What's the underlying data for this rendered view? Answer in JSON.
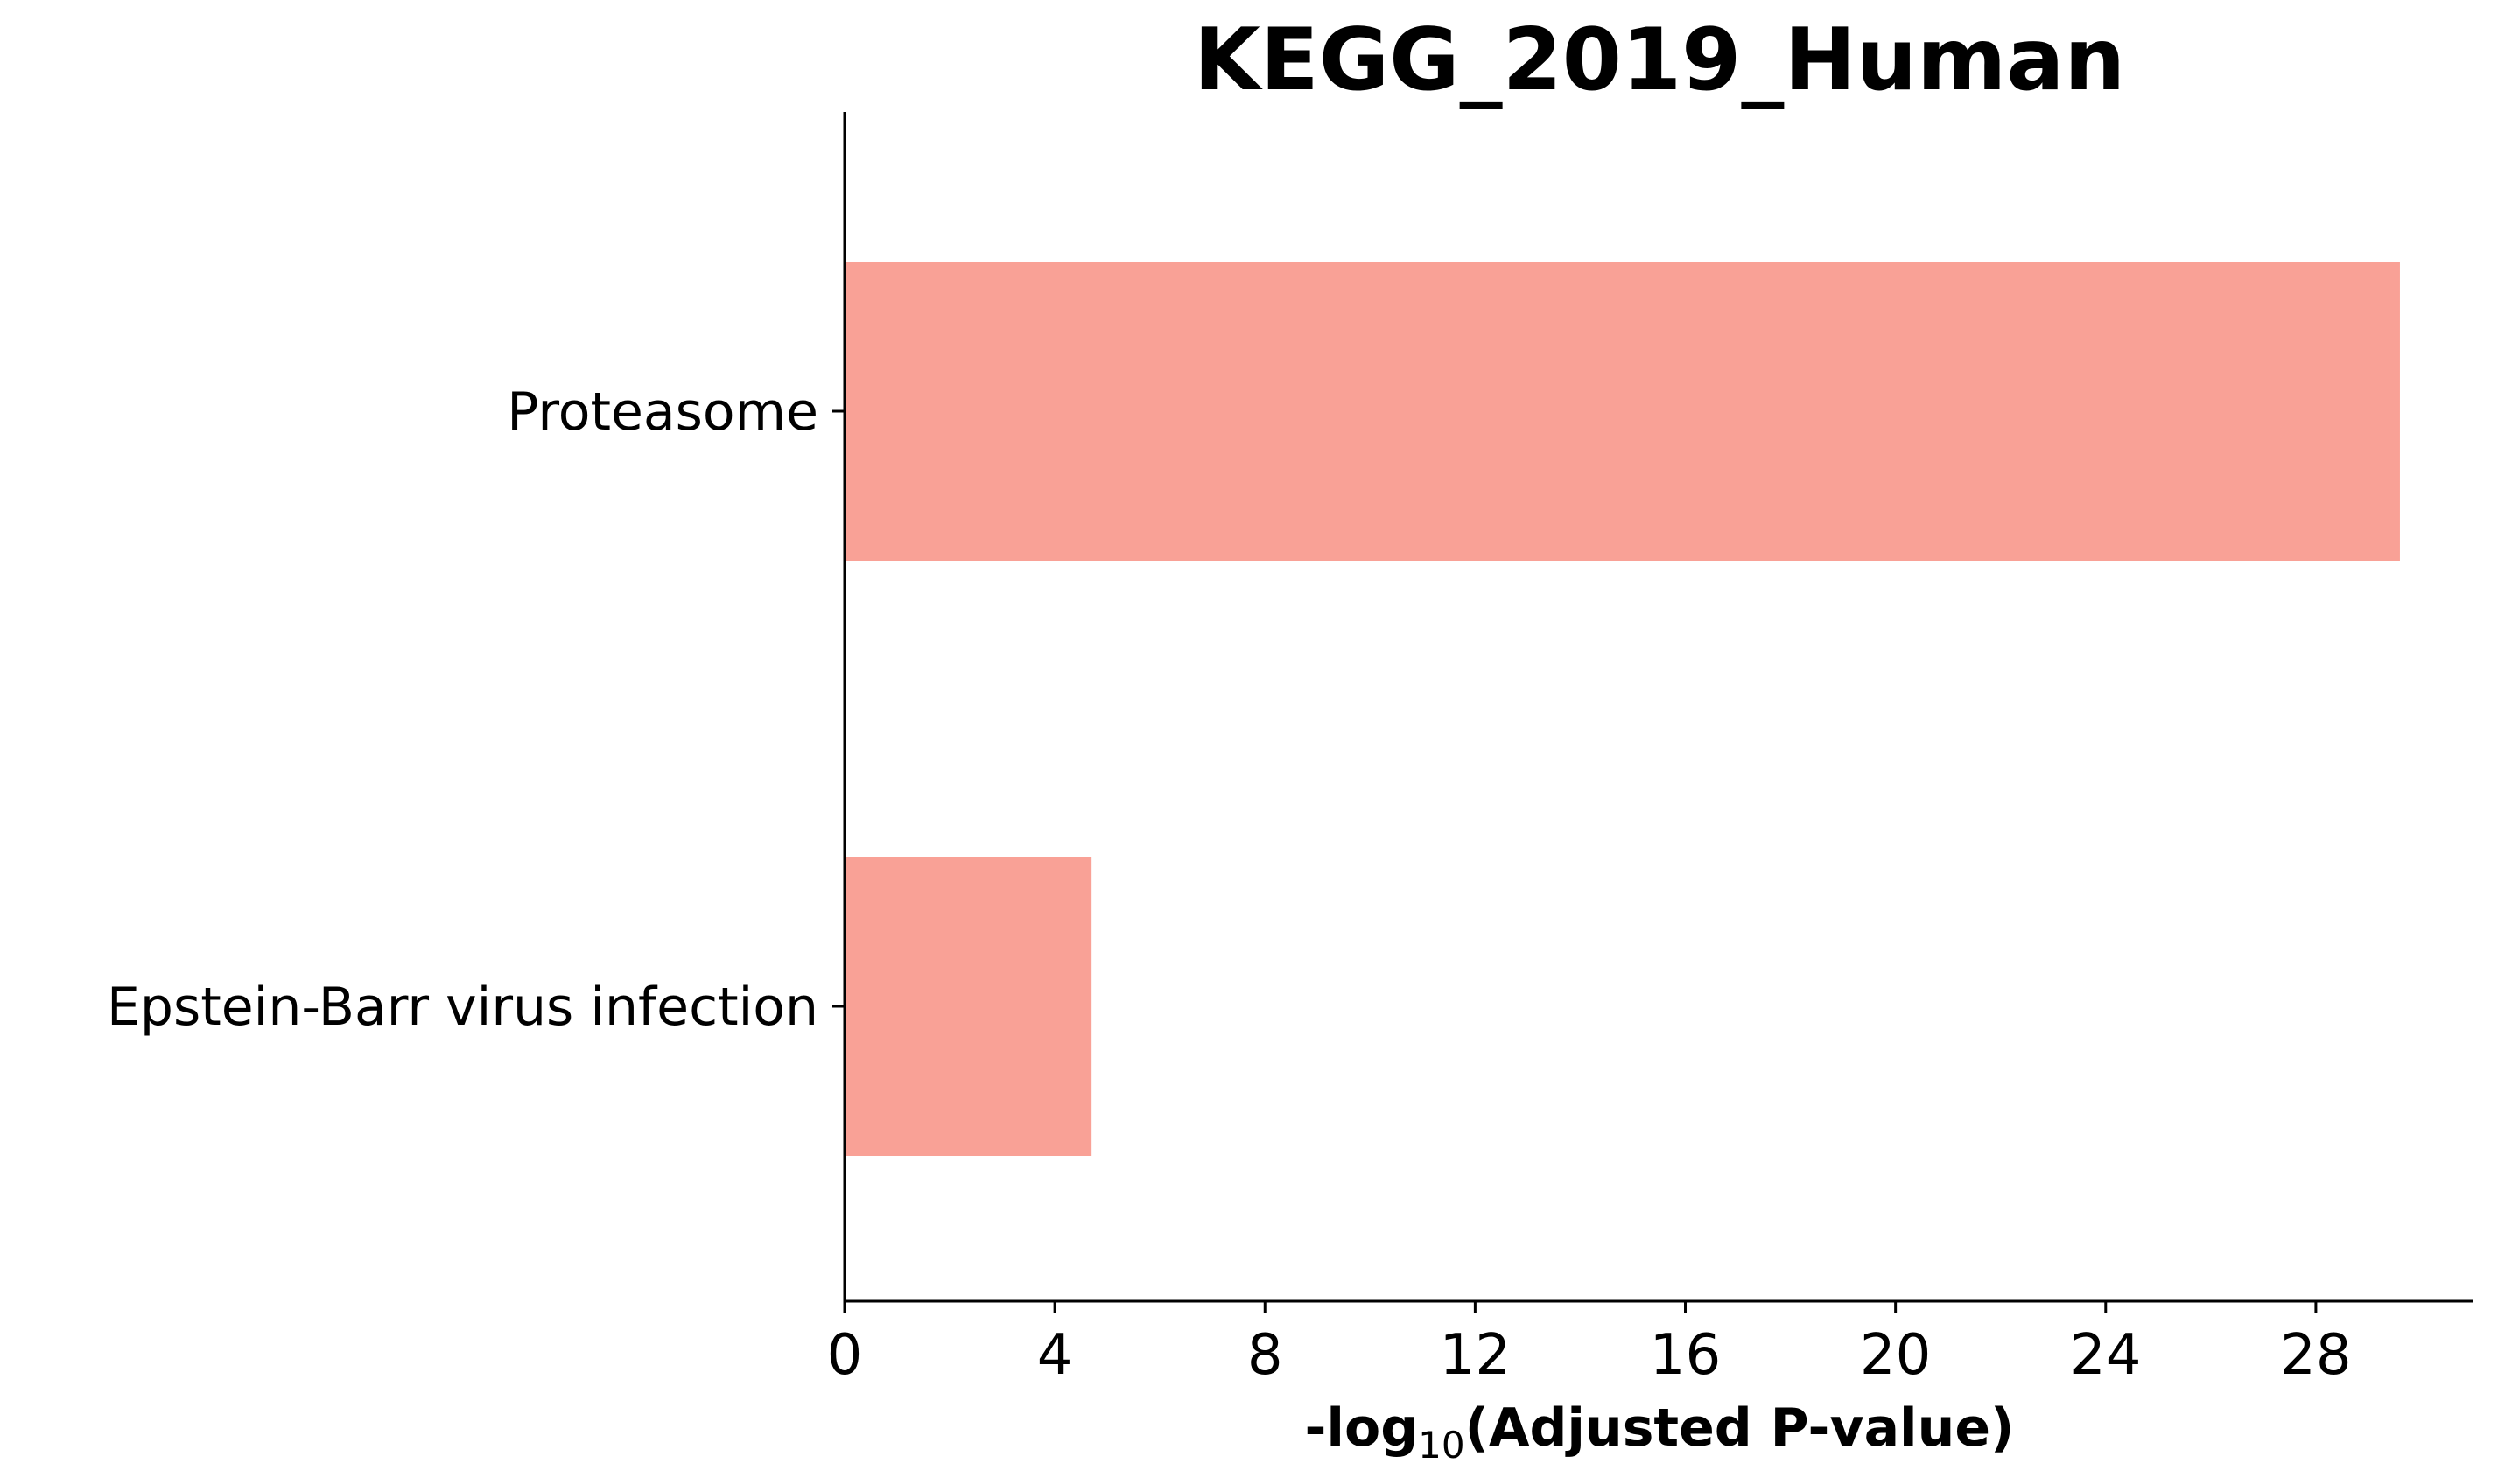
{
  "chart_data": {
    "type": "bar",
    "orientation": "horizontal",
    "title": "KEGG_2019_Human",
    "categories": [
      "Proteasome",
      "Epstein-Barr virus infection"
    ],
    "values": [
      29.6,
      4.7
    ],
    "xlabel": {
      "prefix": "-log",
      "subscript": "10",
      "suffix": "(Adjusted P-value)"
    },
    "ylabel": "",
    "xlim": [
      0,
      31
    ],
    "xticks": [
      0,
      4,
      8,
      12,
      16,
      20,
      24,
      28
    ],
    "bar_color": "#f9a196",
    "grid": false,
    "legend": "none"
  }
}
